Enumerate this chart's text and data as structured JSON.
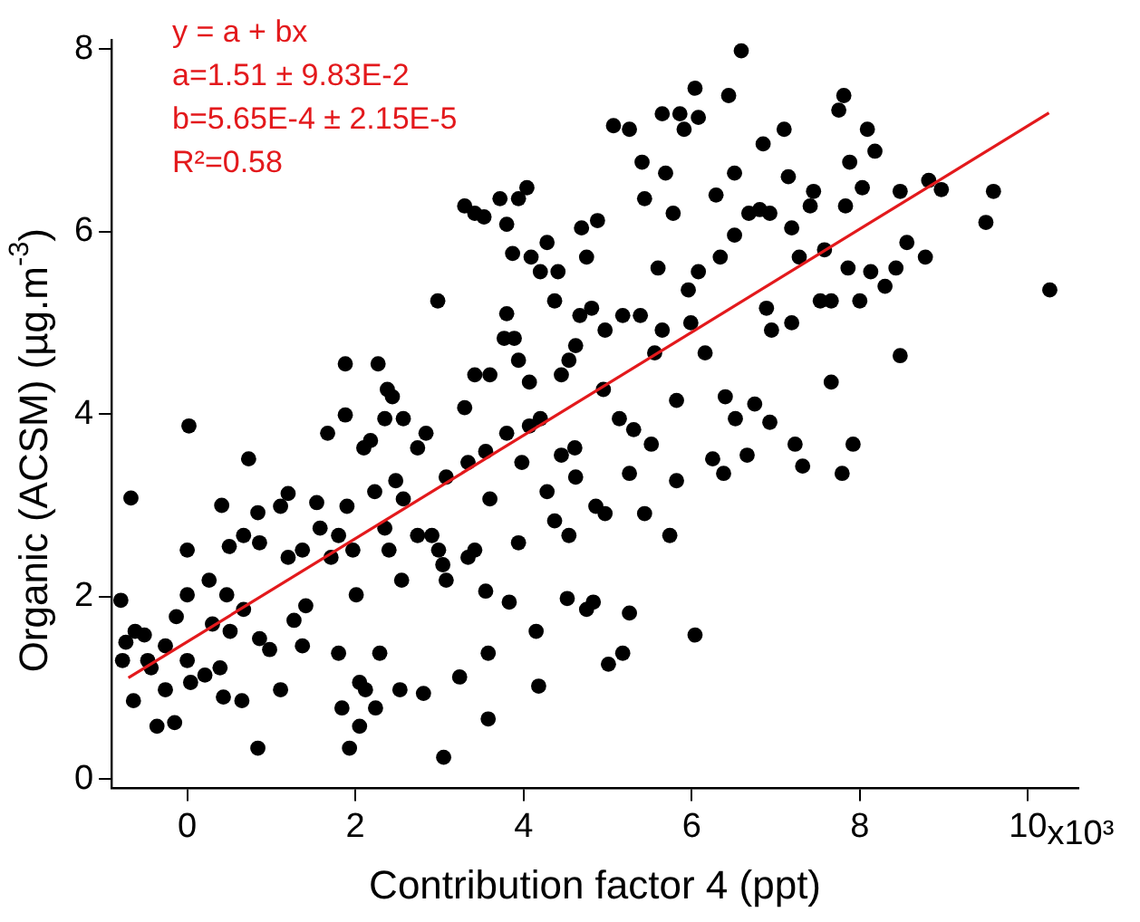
{
  "chart_data": {
    "type": "scatter",
    "xlabel": "Contribution factor 4 (ppt)",
    "ylabel": "Organic (ACSM) (µg.m$^{-3}$)",
    "annotations": [
      "y = a + bx",
      "a=1.51 ± 9.83E-2",
      "b=5.65E-4 ± 2.15E-5",
      "R²=0.58",
      "x10³"
    ],
    "xlim": [
      -0.9,
      10.6
    ],
    "ylim": [
      -0.1,
      8.1
    ],
    "xticks": [
      0,
      2,
      4,
      6,
      8,
      10
    ],
    "yticks": [
      0,
      2,
      4,
      6,
      8
    ],
    "grid": false,
    "series": [
      {
        "color": "#000000",
        "marker": "circle",
        "x": [
          -0.79,
          -0.67,
          -0.77,
          -0.73,
          -0.62,
          -0.51,
          -0.64,
          -0.47,
          -0.36,
          -0.15,
          -0.26,
          -0.13,
          0,
          0.02,
          0,
          0,
          0.04,
          0.21,
          0.26,
          0.3,
          0.41,
          0.43,
          0.39,
          0.5,
          0.51,
          0.67,
          0.65,
          0.73,
          0.67,
          0.84,
          0.86,
          0.84,
          0.86,
          0.98,
          1.11,
          1.11,
          1.2,
          1.27,
          1.37,
          1.37,
          1.41,
          1.54,
          1.58,
          1.67,
          1.71,
          1.8,
          1.84,
          1.88,
          1.88,
          1.9,
          1.93,
          1.97,
          2.01,
          2.05,
          2.05,
          2.12,
          2.1,
          2.18,
          2.24,
          2.27,
          2.29,
          2.35,
          2.35,
          2.38,
          2.44,
          2.48,
          2.53,
          2.55,
          2.57,
          2.74,
          2.81,
          2.84,
          2.91,
          2.98,
          3.04,
          3.05,
          3.08,
          3.24,
          3.3,
          3.3,
          3.42,
          3.53,
          3.42,
          3.34,
          3.55,
          3.55,
          3.58,
          3.58,
          3.6,
          3.72,
          3.8,
          3.87,
          3.94,
          4.04,
          3.8,
          3.8,
          3.83,
          3.94,
          3.98,
          4.07,
          4.09,
          4.2,
          4.15,
          4.18,
          4.28,
          4.37,
          4.37,
          4.41,
          4.45,
          4.52,
          4.54,
          4.61,
          4.62,
          4.67,
          4.69,
          4.75,
          4.75,
          4.81,
          4.83,
          4.88,
          4.86,
          4.95,
          4.97,
          5.01,
          5.07,
          5.26,
          5.18,
          5.14,
          5.18,
          5.26,
          5.26,
          5.31,
          5.41,
          5.44,
          5.44,
          5.52,
          5.56,
          5.6,
          5.65,
          5.69,
          5.74,
          5.78,
          5.82,
          5.86,
          5.91,
          5.82,
          5.96,
          6.04,
          6.08,
          6.04,
          6.08,
          6.16,
          6.25,
          6.29,
          6.38,
          6.4,
          6.44,
          6.51,
          6.59,
          6.52,
          6.66,
          6.75,
          6.81,
          6.85,
          6.89,
          6.93,
          6.95,
          7.1,
          7.15,
          7.19,
          7.23,
          7.28,
          7.32,
          7.41,
          7.45,
          7.58,
          7.66,
          7.66,
          7.75,
          7.81,
          7.79,
          7.83,
          7.86,
          7.92,
          7.88,
          8,
          8.03,
          8.09,
          8.13,
          8.18,
          8.3,
          8.43,
          8.48,
          8.48,
          8.56,
          8.78,
          8.82,
          8.97,
          9.5,
          9.59,
          10.26,
          2.57,
          2.74,
          2.99,
          3.42,
          3.6,
          3.77,
          3.89,
          4.2,
          4.45,
          4.54,
          4.97,
          5.39,
          5.65,
          5.99,
          6.34,
          6.51,
          6.68,
          6.93,
          7.19,
          7.53,
          -0.43,
          -0.26,
          0.47,
          1.2,
          1.8,
          2.23,
          2.4,
          3.08,
          3.34,
          3.94,
          4.07,
          4.28,
          4.62
        ],
        "values": [
          1.96,
          3.08,
          1.3,
          1.5,
          1.62,
          1.58,
          0.86,
          1.3,
          0.58,
          0.62,
          1.46,
          1.78,
          2.51,
          3.87,
          2.02,
          1.3,
          1.06,
          1.14,
          2.18,
          1.7,
          3,
          0.9,
          1.22,
          2.55,
          1.62,
          2.67,
          0.86,
          3.51,
          1.86,
          2.92,
          2.59,
          0.34,
          1.54,
          1.42,
          2.99,
          0.98,
          2.43,
          1.74,
          1.46,
          2.51,
          1.9,
          3.03,
          2.75,
          3.79,
          2.43,
          1.38,
          0.78,
          4.55,
          3.99,
          2.99,
          0.34,
          2.51,
          2.02,
          1.06,
          0.58,
          0.98,
          3.63,
          3.71,
          0.78,
          4.55,
          1.38,
          3.95,
          2.75,
          4.27,
          4.19,
          3.27,
          0.98,
          2.18,
          3.95,
          3.63,
          0.94,
          3.79,
          2.67,
          5.24,
          2.35,
          0.24,
          2.18,
          1.12,
          4.07,
          6.28,
          6.2,
          6.16,
          4.43,
          3.47,
          3.59,
          2.06,
          0.66,
          1.38,
          4.43,
          6.36,
          6.08,
          5.76,
          6.36,
          6.48,
          5.1,
          3.79,
          1.94,
          2.59,
          3.47,
          4.35,
          5.72,
          5.56,
          1.62,
          1.02,
          5.88,
          5.24,
          2.83,
          5.56,
          4.43,
          1.98,
          2.67,
          3.63,
          4.75,
          5.08,
          6.04,
          5.72,
          1.86,
          5.16,
          1.94,
          6.12,
          2.99,
          4.27,
          2.91,
          1.26,
          7.16,
          7.12,
          5.08,
          3.95,
          1.38,
          1.82,
          3.35,
          3.83,
          6.76,
          6.36,
          2.91,
          3.67,
          4.67,
          5.6,
          7.29,
          6.64,
          2.67,
          6.2,
          4.15,
          7.29,
          7.12,
          3.27,
          5.36,
          7.57,
          7.25,
          1.58,
          5.56,
          4.67,
          3.51,
          6.4,
          3.35,
          4.19,
          7.49,
          6.64,
          7.98,
          3.95,
          3.55,
          4.11,
          6.24,
          6.96,
          5.16,
          3.91,
          4.92,
          7.12,
          6.6,
          5,
          3.67,
          5.72,
          3.43,
          6.28,
          6.44,
          5.8,
          4.35,
          5.24,
          7.33,
          7.49,
          3.35,
          6.28,
          5.6,
          3.67,
          6.76,
          5.24,
          6.48,
          7.12,
          5.56,
          6.88,
          5.4,
          5.6,
          4.64,
          6.44,
          5.88,
          5.72,
          6.56,
          6.46,
          6.1,
          6.44,
          5.36,
          3.07,
          2.67,
          2.51,
          2.51,
          3.07,
          4.83,
          4.83,
          3.95,
          3.55,
          4.59,
          4.92,
          5.08,
          4.92,
          5,
          5.72,
          5.96,
          6.2,
          6.2,
          6.04,
          5.24,
          1.22,
          0.98,
          2.02,
          3.13,
          2.67,
          3.15,
          2.51,
          3.31,
          2.43,
          4.59,
          3.87,
          3.15,
          3.31
        ]
      },
      {
        "type": "line",
        "color": "#e3191c",
        "marker": "none",
        "x": [
          -0.7,
          10.25
        ],
        "values": [
          1.11,
          7.3
        ]
      }
    ]
  }
}
